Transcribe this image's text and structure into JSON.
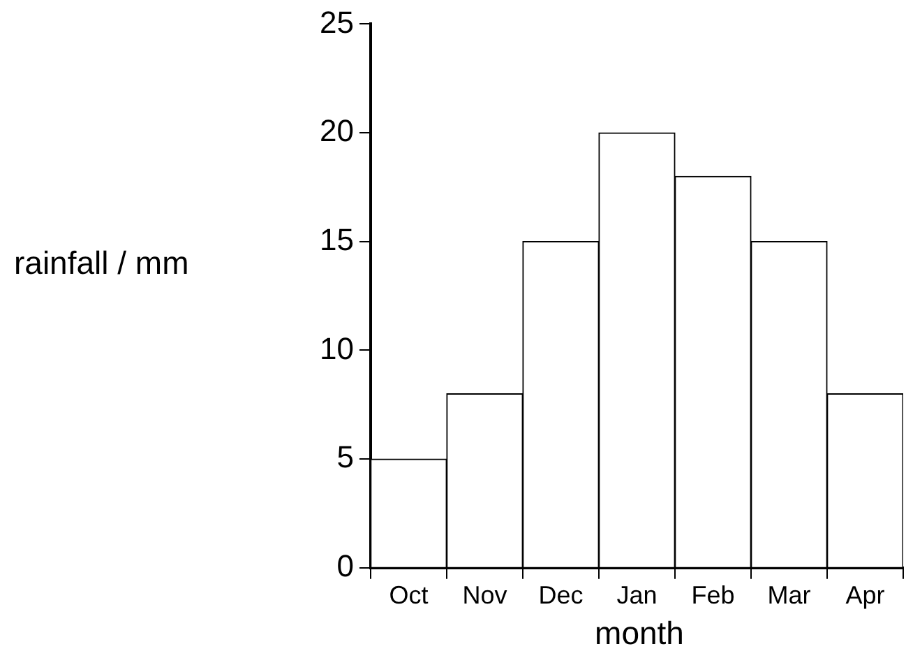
{
  "chart_data": {
    "type": "bar",
    "xlabel": "month",
    "ylabel": "rainfall / mm",
    "categories": [
      "Oct",
      "Nov",
      "Dec",
      "Jan",
      "Feb",
      "Mar",
      "Apr"
    ],
    "values": [
      5,
      8,
      15,
      20,
      18,
      15,
      8
    ],
    "color": "#ffffff",
    "ylim": [
      0,
      25
    ],
    "yticks": [
      0,
      5,
      10,
      15,
      20,
      25
    ],
    "grid": false,
    "legend": false
  }
}
